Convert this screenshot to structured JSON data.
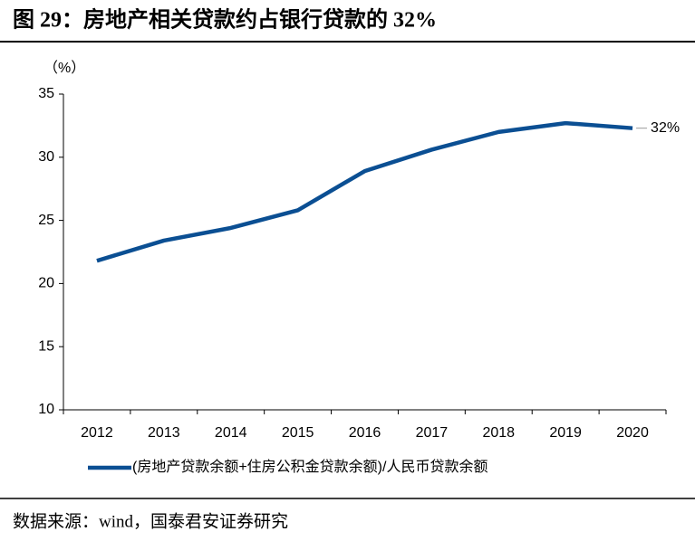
{
  "chart_data": {
    "type": "line",
    "title": "图 29：房地产相关贷款约占银行贷款的 32%",
    "y_unit": "（%）",
    "source": "数据来源：wind，国泰君安证券研究",
    "categories": [
      "2012",
      "2013",
      "2014",
      "2015",
      "2016",
      "2017",
      "2018",
      "2019",
      "2020"
    ],
    "series": [
      {
        "name": "(房地产贷款余额+住房公积金贷款余额)/人民币贷款余额",
        "color": "#0b4f93",
        "values": [
          21.8,
          23.4,
          24.4,
          25.8,
          28.9,
          30.6,
          32.0,
          32.7,
          32.3
        ],
        "value_labels": [
          null,
          null,
          null,
          null,
          null,
          null,
          null,
          null,
          "32%"
        ]
      }
    ],
    "ylim": [
      10,
      35
    ],
    "yticks": [
      10,
      15,
      20,
      25,
      30,
      35
    ]
  }
}
